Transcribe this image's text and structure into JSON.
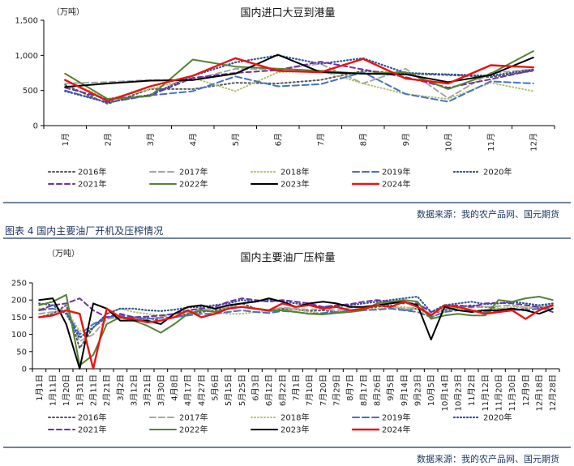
{
  "chart_data": [
    {
      "type": "line",
      "title": "国内进口大豆到港量",
      "unit": "（万吨）",
      "categories": [
        "1月",
        "2月",
        "3月",
        "4月",
        "5月",
        "6月",
        "7月",
        "8月",
        "9月",
        "10月",
        "11月",
        "12月"
      ],
      "y_ticks": [
        "0",
        "500",
        "1,000",
        "1,500"
      ],
      "ylim": [
        0,
        1500
      ],
      "series": [
        {
          "name": "2016年",
          "color": "#595959",
          "dash": "2,3",
          "width": 2,
          "values": [
            580,
            310,
            520,
            520,
            610,
            600,
            650,
            780,
            740,
            720,
            690,
            780
          ]
        },
        {
          "name": "2017年",
          "color": "#a6a6a6",
          "dash": "7,4",
          "width": 2,
          "values": [
            600,
            620,
            650,
            650,
            810,
            800,
            880,
            600,
            810,
            390,
            750,
            800
          ]
        },
        {
          "name": "2018年",
          "color": "#b5bf6e",
          "dash": "1,3",
          "width": 2,
          "values": [
            650,
            380,
            520,
            680,
            490,
            760,
            780,
            600,
            450,
            380,
            610,
            490
          ]
        },
        {
          "name": "2019年",
          "color": "#4472c4",
          "dash": "8,4",
          "width": 2,
          "values": [
            500,
            330,
            430,
            490,
            700,
            560,
            590,
            760,
            450,
            340,
            630,
            600
          ]
        },
        {
          "name": "2020年",
          "color": "#2e5597",
          "dash": "1,3",
          "width": 2.2,
          "values": [
            490,
            330,
            440,
            710,
            900,
            1000,
            880,
            960,
            750,
            730,
            710,
            800
          ]
        },
        {
          "name": "2021年",
          "color": "#7030a0",
          "dash": "6,4",
          "width": 2,
          "values": [
            540,
            380,
            430,
            680,
            750,
            790,
            910,
            800,
            690,
            540,
            660,
            790
          ]
        },
        {
          "name": "2022年",
          "color": "#548235",
          "dash": "",
          "width": 2,
          "values": [
            740,
            380,
            420,
            940,
            840,
            810,
            780,
            740,
            760,
            520,
            740,
            1060
          ]
        },
        {
          "name": "2023年",
          "color": "#000000",
          "dash": "",
          "width": 2,
          "values": [
            550,
            600,
            640,
            650,
            740,
            1010,
            760,
            740,
            730,
            620,
            720,
            970
          ]
        },
        {
          "name": "2024年",
          "color": "#ee1111",
          "dash": "",
          "width": 2.4,
          "values": [
            650,
            350,
            560,
            710,
            960,
            780,
            760,
            950,
            670,
            600,
            860,
            830
          ]
        }
      ]
    },
    {
      "type": "line",
      "title": "国内主要油厂压榨量",
      "unit": "（万吨）",
      "categories": [
        "1月1日",
        "1月11日",
        "1月20日",
        "1月31日",
        "2月11日",
        "2月21日",
        "3月2日",
        "3月12日",
        "3月21日",
        "3月30日",
        "4月8日",
        "4月17日",
        "4月27日",
        "5月6日",
        "5月15日",
        "5月25日",
        "6月3日",
        "6月12日",
        "6月22日",
        "7月1日",
        "7月10日",
        "7月20日",
        "7月29日",
        "8月7日",
        "8月17日",
        "8月26日",
        "9月5日",
        "9月14日",
        "9月23日",
        "10月5日",
        "10月14日",
        "10月23日",
        "11月2日",
        "11月12日",
        "11月20日",
        "11月30日",
        "12月9日",
        "12月18日",
        "12月28日"
      ],
      "y_ticks": [
        "0",
        "50",
        "100",
        "150",
        "200",
        "250"
      ],
      "ylim": [
        0,
        250
      ],
      "series": [
        {
          "name": "2016年",
          "color": "#595959",
          "dash": "2,3",
          "width": 2,
          "values": [
            150,
            160,
            185,
            60,
            120,
            150,
            148,
            142,
            148,
            140,
            150,
            160,
            165,
            170,
            180,
            190,
            175,
            170,
            175,
            172,
            168,
            170,
            165,
            170,
            175,
            180,
            185,
            170,
            175,
            160,
            170,
            178,
            185,
            180,
            175,
            170,
            175,
            180,
            185
          ]
        },
        {
          "name": "2017年",
          "color": "#a6a6a6",
          "dash": "7,4",
          "width": 2,
          "values": [
            160,
            165,
            170,
            80,
            100,
            145,
            150,
            140,
            145,
            150,
            160,
            165,
            170,
            175,
            180,
            180,
            175,
            170,
            178,
            175,
            172,
            175,
            170,
            178,
            180,
            185,
            180,
            175,
            178,
            160,
            175,
            180,
            178,
            180,
            182,
            185,
            178,
            180,
            182
          ]
        },
        {
          "name": "2018年",
          "color": "#b5bf6e",
          "dash": "1,3",
          "width": 2,
          "values": [
            175,
            175,
            170,
            110,
            120,
            160,
            175,
            165,
            160,
            155,
            160,
            170,
            175,
            165,
            160,
            160,
            165,
            168,
            170,
            172,
            165,
            160,
            165,
            170,
            172,
            175,
            178,
            180,
            172,
            150,
            165,
            175,
            170,
            172,
            175,
            180,
            178,
            175,
            180
          ]
        },
        {
          "name": "2019年",
          "color": "#4472c4",
          "dash": "8,4",
          "width": 2,
          "values": [
            170,
            175,
            165,
            100,
            130,
            150,
            155,
            150,
            145,
            148,
            150,
            155,
            160,
            160,
            165,
            170,
            165,
            162,
            168,
            165,
            160,
            162,
            165,
            168,
            170,
            172,
            175,
            170,
            165,
            150,
            165,
            170,
            168,
            165,
            170,
            172,
            170,
            175,
            175
          ]
        },
        {
          "name": "2020年",
          "color": "#2e5597",
          "dash": "1,3",
          "width": 2.2,
          "values": [
            190,
            185,
            160,
            90,
            120,
            160,
            175,
            175,
            170,
            168,
            172,
            178,
            180,
            185,
            190,
            200,
            195,
            200,
            195,
            190,
            185,
            180,
            182,
            185,
            190,
            195,
            200,
            205,
            210,
            165,
            185,
            190,
            195,
            188,
            190,
            195,
            190,
            185,
            190
          ]
        },
        {
          "name": "2021年",
          "color": "#7030a0",
          "dash": "6,4",
          "width": 2,
          "values": [
            170,
            185,
            190,
            205,
            170,
            150,
            160,
            150,
            152,
            155,
            160,
            170,
            175,
            180,
            195,
            205,
            200,
            195,
            200,
            195,
            190,
            180,
            185,
            188,
            195,
            200,
            195,
            190,
            190,
            165,
            180,
            185,
            180,
            190,
            192,
            190,
            185,
            180,
            165
          ]
        },
        {
          "name": "2022年",
          "color": "#548235",
          "dash": "",
          "width": 2,
          "values": [
            185,
            195,
            215,
            10,
            40,
            130,
            150,
            140,
            125,
            105,
            130,
            160,
            170,
            165,
            175,
            180,
            175,
            168,
            170,
            165,
            160,
            158,
            162,
            165,
            170,
            190,
            195,
            200,
            195,
            145,
            155,
            160,
            155,
            155,
            200,
            195,
            205,
            210,
            200
          ]
        },
        {
          "name": "2023年",
          "color": "#000000",
          "dash": "",
          "width": 2,
          "values": [
            200,
            205,
            130,
            0,
            190,
            175,
            140,
            140,
            140,
            130,
            160,
            180,
            185,
            175,
            185,
            190,
            195,
            205,
            195,
            180,
            190,
            195,
            190,
            180,
            180,
            185,
            190,
            195,
            185,
            85,
            180,
            170,
            165,
            170,
            170,
            175,
            170,
            160,
            175
          ]
        },
        {
          "name": "2024年",
          "color": "#ee1111",
          "dash": "",
          "width": 2.4,
          "values": [
            150,
            155,
            170,
            160,
            0,
            175,
            150,
            145,
            135,
            140,
            150,
            170,
            150,
            160,
            175,
            180,
            175,
            170,
            190,
            180,
            185,
            175,
            180,
            170,
            175,
            185,
            180,
            195,
            180,
            155,
            185,
            180,
            170,
            160,
            165,
            170,
            145,
            170,
            185
          ]
        }
      ]
    }
  ],
  "caption": "图表 4  国内主要油厂开机及压榨情况",
  "source": "数据来源：我的农产品网、国元期货"
}
